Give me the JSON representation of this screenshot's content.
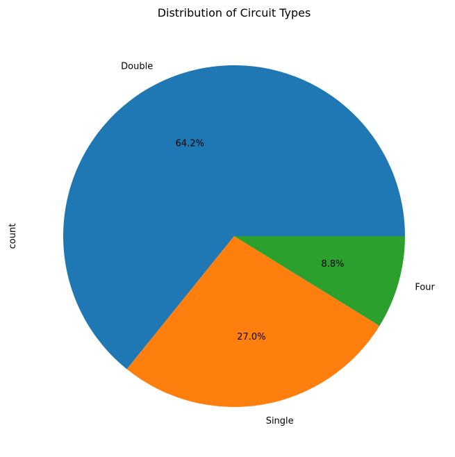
{
  "chart_data": {
    "type": "pie",
    "title": "Distribution of Circuit Types",
    "ylabel": "count",
    "xlabel": "",
    "categories": [
      "Double",
      "Single",
      "Four"
    ],
    "values": [
      64.2,
      27.0,
      8.8
    ],
    "percent_labels": [
      "64.2%",
      "27.0%",
      "8.8%"
    ],
    "colors": [
      "#1f77b4",
      "#ff7f0e",
      "#2ca02c"
    ],
    "start_angle_deg": 0,
    "direction": "counterclockwise",
    "legend": "none"
  }
}
